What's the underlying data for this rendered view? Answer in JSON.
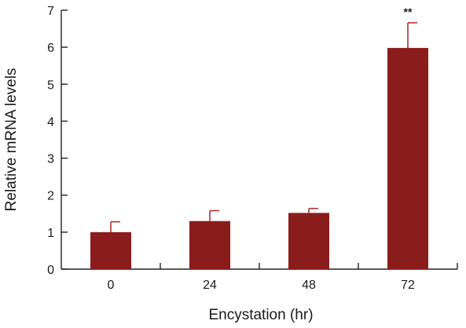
{
  "chart_data": {
    "type": "bar",
    "title": "",
    "xlabel": "Encystation (hr)",
    "ylabel": "Relative mRNA levels",
    "categories": [
      "0",
      "24",
      "48",
      "72"
    ],
    "values": [
      1.0,
      1.3,
      1.52,
      5.98
    ],
    "errors": [
      0.28,
      0.28,
      0.12,
      0.68
    ],
    "annotations": [
      "",
      "",
      "",
      "**"
    ],
    "ylim": [
      0,
      7
    ],
    "yticks": [
      0,
      1,
      2,
      3,
      4,
      5,
      6,
      7
    ],
    "grid": false,
    "bar_color": "#8b1c1c",
    "error_color": "#b03030"
  }
}
